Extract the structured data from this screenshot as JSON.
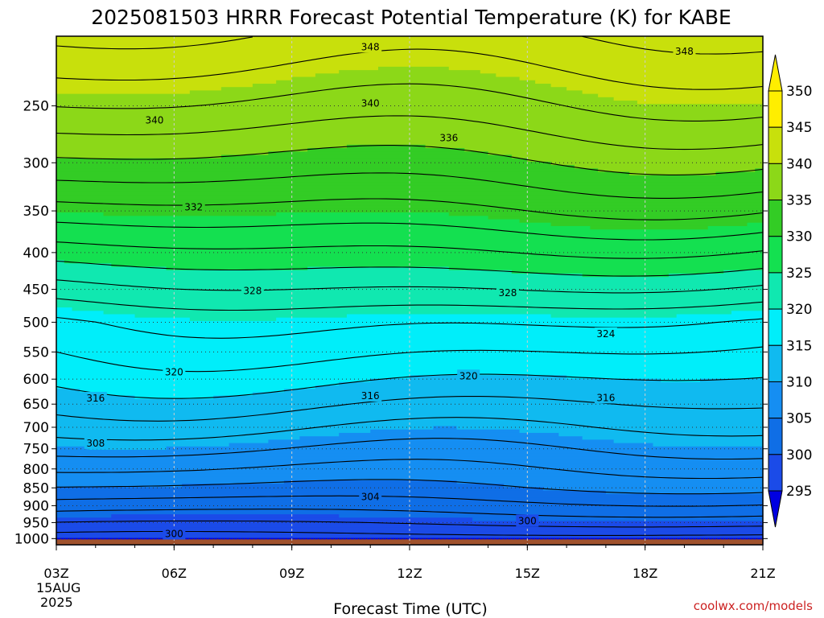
{
  "chart_data": {
    "type": "contour",
    "title": "2025081503 HRRR Forecast Potential Temperature (K) for KABE",
    "xlabel": "Forecast Time (UTC)",
    "ylabel": "",
    "credit": "coolwx.com/models",
    "x_ticks": [
      "03Z",
      "06Z",
      "09Z",
      "12Z",
      "15Z",
      "18Z",
      "21Z"
    ],
    "x_date_line1": "15AUG",
    "x_date_line2": "2025",
    "y_scale": "log",
    "y_range": [
      1020,
      200
    ],
    "y_ticks": [
      250,
      300,
      350,
      400,
      450,
      500,
      550,
      600,
      650,
      700,
      750,
      800,
      850,
      900,
      950,
      1000
    ],
    "y_ticks_labels": [
      "250",
      "300",
      "350",
      "400",
      "450",
      "500",
      "550",
      "600",
      "650",
      "700",
      "750",
      "800",
      "850",
      "900",
      "950",
      "1000"
    ],
    "grid": true,
    "colorbar": {
      "ticks": [
        295,
        300,
        305,
        310,
        315,
        320,
        325,
        330,
        335,
        340,
        345,
        350
      ],
      "ticks_labels": [
        "295",
        "300",
        "305",
        "310",
        "315",
        "320",
        "325",
        "330",
        "335",
        "340",
        "345",
        "350"
      ],
      "colors": {
        "295": "#0000e0",
        "300": "#1b4be8",
        "305": "#0f6ee6",
        "310": "#158ef2",
        "315": "#10baf0",
        "320": "#00eefa",
        "325": "#10e8b0",
        "330": "#14e050",
        "335": "#33cc25",
        "340": "#8cd818",
        "345": "#c8e00c",
        "350": "#ffee00",
        "ground": "#a0522d"
      }
    },
    "contour_levels": [
      298,
      300,
      302,
      304,
      306,
      308,
      310,
      312,
      314,
      316,
      318,
      320,
      322,
      324,
      326,
      328,
      330,
      332,
      334,
      336,
      338,
      340,
      342,
      344,
      346,
      348,
      350
    ],
    "contour_labels": [
      {
        "text": "348",
        "t": 11.0,
        "p": 207
      },
      {
        "text": "348",
        "t": 19.0,
        "p": 210
      },
      {
        "text": "340",
        "t": 5.5,
        "p": 262
      },
      {
        "text": "340",
        "t": 11.0,
        "p": 248
      },
      {
        "text": "336",
        "t": 13.0,
        "p": 277
      },
      {
        "text": "332",
        "t": 6.5,
        "p": 346
      },
      {
        "text": "328",
        "t": 8.0,
        "p": 452
      },
      {
        "text": "328",
        "t": 14.5,
        "p": 455
      },
      {
        "text": "324",
        "t": 17.0,
        "p": 519
      },
      {
        "text": "320",
        "t": 6.0,
        "p": 587
      },
      {
        "text": "320",
        "t": 13.5,
        "p": 594
      },
      {
        "text": "316",
        "t": 4.0,
        "p": 638
      },
      {
        "text": "316",
        "t": 11.0,
        "p": 633
      },
      {
        "text": "316",
        "t": 17.0,
        "p": 637
      },
      {
        "text": "308",
        "t": 4.0,
        "p": 737
      },
      {
        "text": "304",
        "t": 11.0,
        "p": 875
      },
      {
        "text": "300",
        "t": 15.0,
        "p": 945
      },
      {
        "text": "300",
        "t": 6.0,
        "p": 985
      }
    ]
  }
}
